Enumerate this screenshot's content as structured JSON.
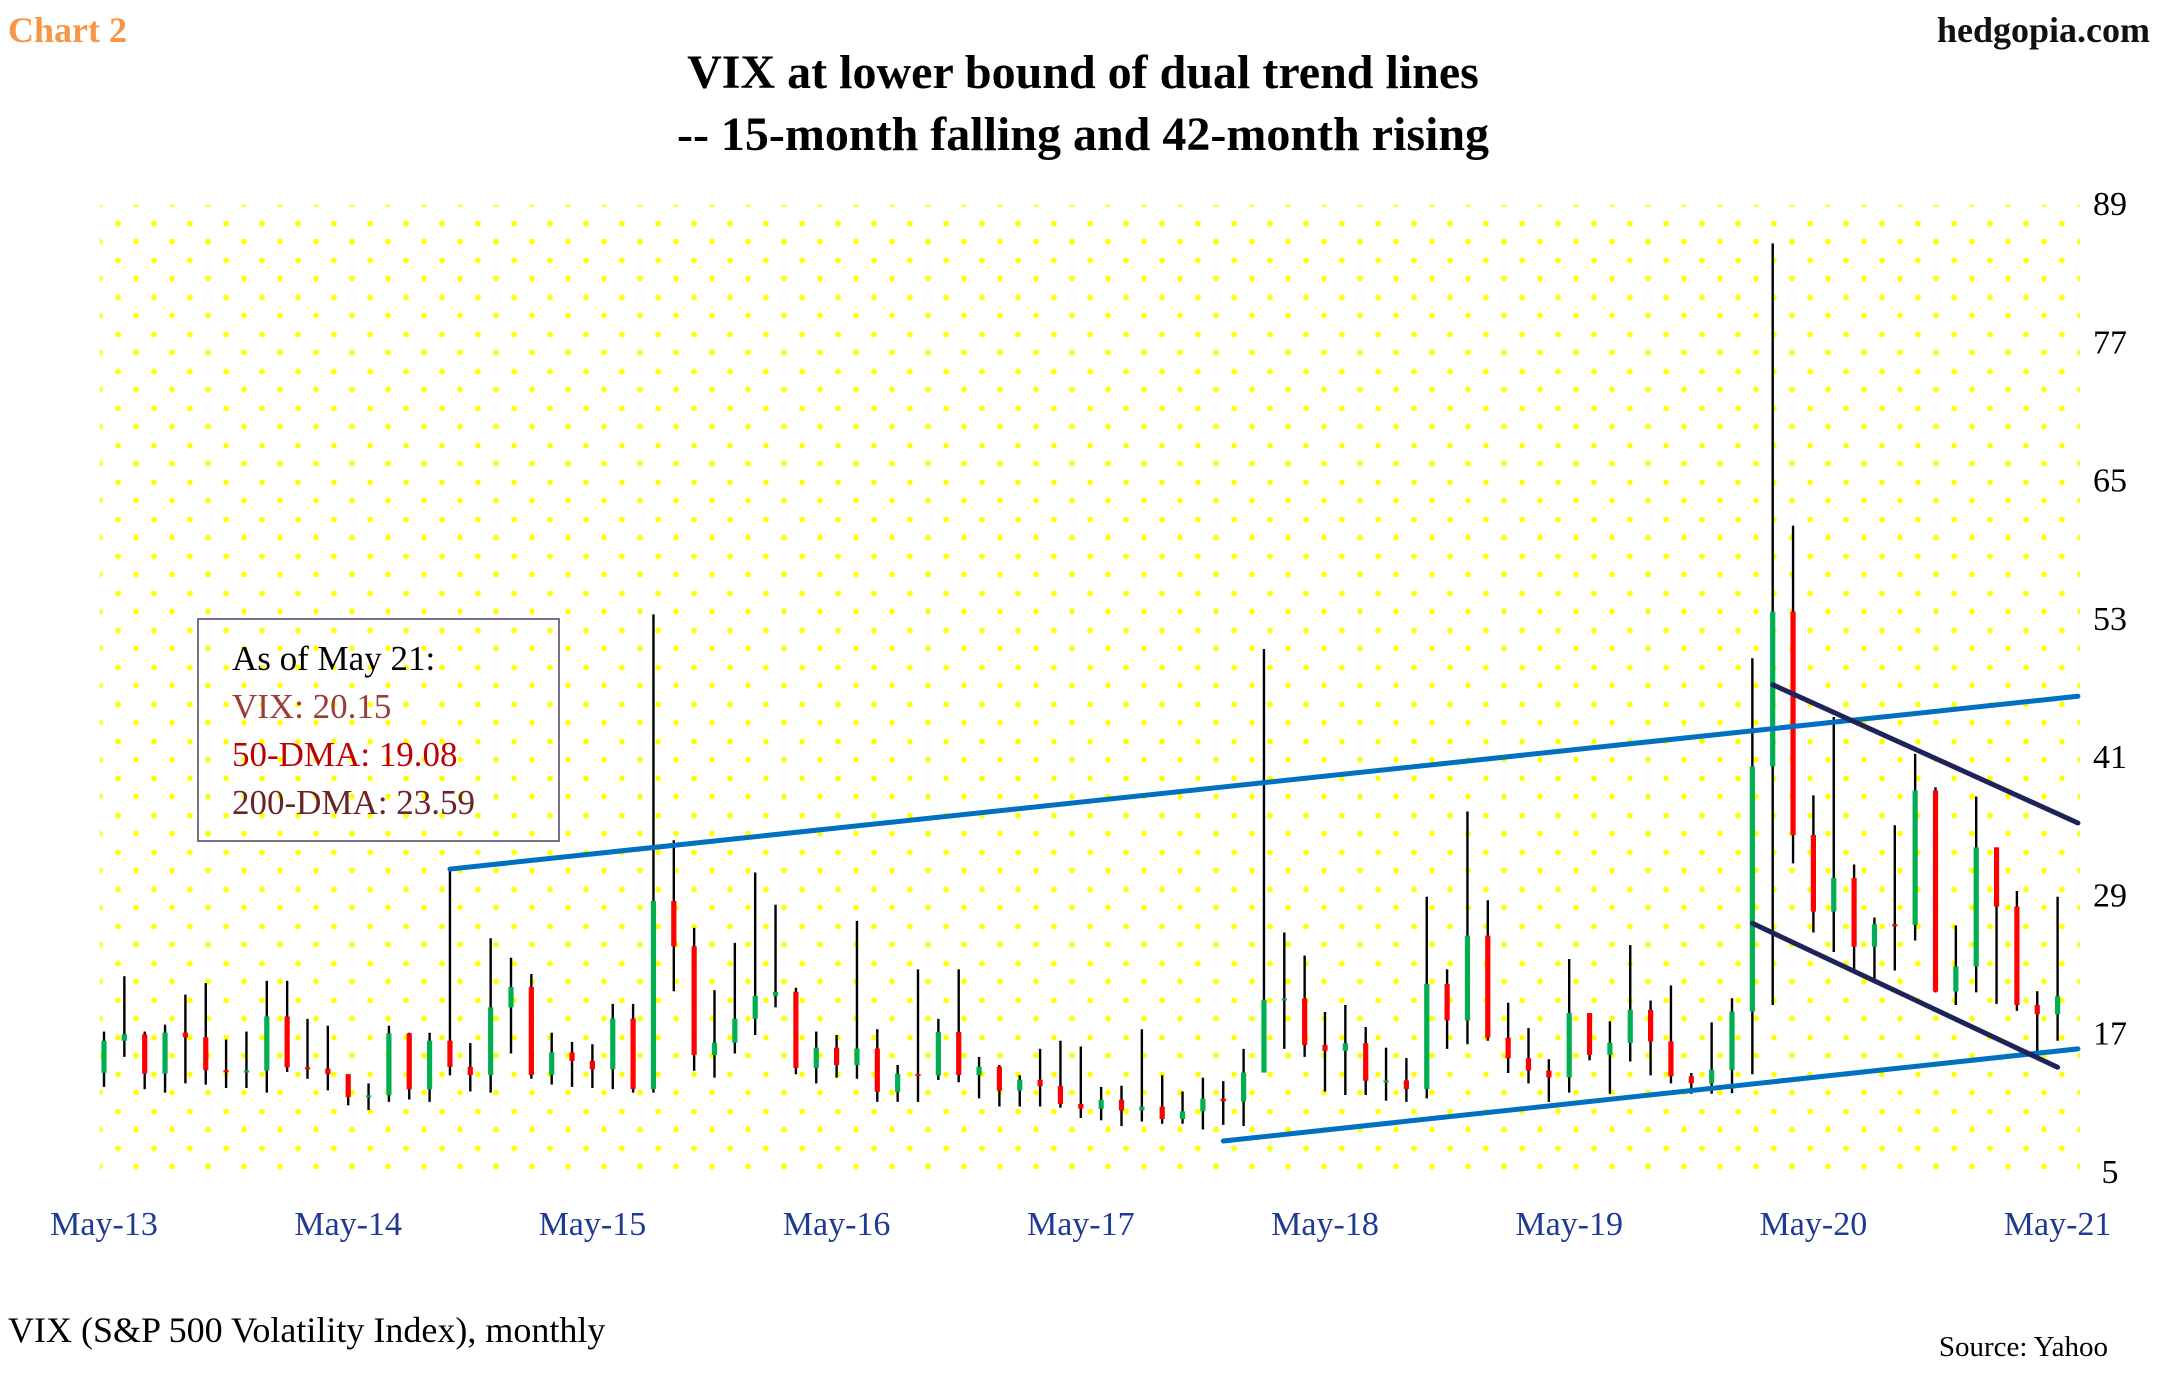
{
  "header": {
    "chart_label": "Chart 2",
    "brand": "hedgopia.com"
  },
  "footer": {
    "description": "VIX (S&P 500 Volatility Index), monthly",
    "source": "Source: Yahoo"
  },
  "colors": {
    "chart_label": "#F79646",
    "up": "#00B050",
    "down": "#FF0000",
    "wick": "#000000",
    "rising_trend": "#0070C0",
    "falling_trend": "#1F2458",
    "dots": "#FFFF00"
  },
  "annotation": {
    "title": "As of May 21:",
    "vix": "VIX: 20.15",
    "dma50": "50-DMA: 19.08",
    "dma200": "200-DMA: 23.59",
    "colors": {
      "vix": "#9B3B3B",
      "dma50": "#C00000",
      "dma200": "#6B2424"
    }
  },
  "chart_data": {
    "type": "ohlc",
    "title": "VIX at lower bound of dual trend lines",
    "subtitle": "-- 15-month falling and 42-month rising",
    "start_month": "May-13",
    "x_tick_labels": [
      "May-13",
      "May-14",
      "May-15",
      "May-16",
      "May-17",
      "May-18",
      "May-19",
      "May-20",
      "May-21"
    ],
    "y_ticks": [
      5,
      17,
      29,
      41,
      53,
      65,
      77,
      89
    ],
    "ylim": [
      5,
      89
    ],
    "y_axis_side": "right",
    "grid": false,
    "close": [
      16.3,
      16.86,
      13.45,
      17.01,
      16.6,
      13.75,
      13.7,
      13.72,
      18.41,
      14.0,
      13.88,
      13.41,
      11.4,
      11.57,
      16.95,
      12.09,
      16.31,
      14.03,
      13.33,
      19.2,
      20.97,
      13.34,
      15.29,
      14.55,
      13.84,
      18.23,
      12.12,
      28.43,
      24.5,
      15.07,
      16.13,
      18.21,
      20.2,
      20.55,
      13.95,
      15.7,
      14.19,
      15.63,
      11.87,
      13.42,
      13.29,
      17.06,
      13.33,
      14.04,
      11.99,
      12.92,
      12.37,
      10.82,
      10.41,
      11.18,
      10.26,
      10.59,
      9.51,
      10.18,
      11.28,
      11.04,
      13.54,
      19.85,
      19.97,
      15.93,
      15.43,
      16.09,
      12.83,
      12.86,
      12.12,
      21.23,
      18.07,
      25.42,
      16.57,
      14.78,
      13.71,
      13.12,
      18.71,
      15.08,
      16.12,
      18.98,
      16.24,
      13.22,
      12.62,
      13.78,
      18.84,
      40.11,
      53.54,
      34.15,
      27.51,
      30.43,
      24.46,
      26.41,
      26.37,
      38.02,
      20.57,
      22.75,
      33.09,
      27.95,
      19.4,
      18.61,
      20.15
    ],
    "open_first": 13.52,
    "high": [
      17.1,
      21.9,
      17.1,
      17.7,
      20.3,
      21.3,
      16.4,
      17.1,
      21.5,
      21.5,
      18.2,
      17.6,
      13.3,
      12.6,
      17.6,
      17.0,
      17.0,
      31.1,
      16.1,
      25.2,
      23.5,
      22.1,
      17.0,
      16.2,
      16.0,
      19.5,
      19.5,
      53.3,
      33.7,
      26.1,
      20.7,
      24.8,
      30.9,
      28.1,
      20.9,
      17.1,
      16.8,
      26.7,
      17.3,
      14.2,
      22.5,
      18.2,
      22.5,
      14.9,
      14.2,
      13.3,
      15.6,
      16.3,
      15.8,
      12.3,
      12.4,
      17.3,
      13.3,
      11.9,
      13.1,
      12.8,
      15.6,
      50.3,
      25.7,
      23.7,
      18.8,
      19.4,
      17.5,
      15.7,
      14.8,
      28.8,
      22.5,
      36.2,
      28.5,
      19.6,
      17.4,
      14.7,
      23.4,
      18.5,
      18.0,
      24.6,
      19.8,
      21.1,
      13.5,
      17.9,
      19.99,
      49.5,
      85.5,
      61.0,
      37.6,
      44.4,
      31.6,
      27.0,
      35.0,
      41.2,
      38.3,
      26.3,
      37.5,
      31.2,
      29.3,
      20.6,
      28.8
    ],
    "low": [
      12.3,
      14.9,
      12.1,
      11.8,
      12.6,
      12.5,
      12.2,
      12.2,
      11.8,
      13.6,
      13.0,
      12.0,
      10.7,
      10.3,
      11.0,
      11.2,
      11.0,
      13.3,
      11.9,
      11.8,
      15.2,
      13.0,
      12.5,
      12.3,
      12.2,
      12.1,
      11.8,
      11.8,
      20.6,
      13.7,
      13.1,
      15.2,
      16.8,
      19.2,
      13.4,
      12.6,
      13.1,
      13.0,
      11.0,
      11.0,
      11.0,
      12.9,
      12.7,
      11.3,
      10.6,
      10.6,
      10.6,
      10.5,
      9.6,
      9.4,
      8.9,
      9.3,
      9.1,
      9.1,
      8.6,
      9.0,
      8.9,
      13.7,
      15.6,
      14.9,
      11.9,
      11.6,
      11.6,
      11.1,
      11.0,
      11.3,
      15.6,
      16.0,
      16.3,
      13.5,
      12.6,
      11.0,
      11.8,
      14.6,
      11.7,
      14.5,
      13.3,
      12.6,
      11.7,
      11.7,
      11.75,
      13.4,
      19.4,
      31.7,
      25.7,
      24.0,
      22.3,
      21.3,
      22.4,
      25.0,
      20.5,
      19.4,
      20.5,
      19.5,
      18.9,
      15.4,
      16.3
    ],
    "trend_lines": [
      {
        "kind": "rising",
        "from": [
          "Oct-14",
          31.2
        ],
        "to": [
          "Jun-21",
          46.2
        ]
      },
      {
        "kind": "rising",
        "from": [
          "Dec-17",
          7.6
        ],
        "to": [
          "Jun-21",
          15.6
        ]
      },
      {
        "kind": "falling",
        "from": [
          "Mar-20",
          47.2
        ],
        "to": [
          "Jun-21",
          35.2
        ]
      },
      {
        "kind": "falling",
        "from": [
          "Feb-20",
          26.5
        ],
        "to": [
          "May-21",
          14.0
        ]
      }
    ]
  }
}
